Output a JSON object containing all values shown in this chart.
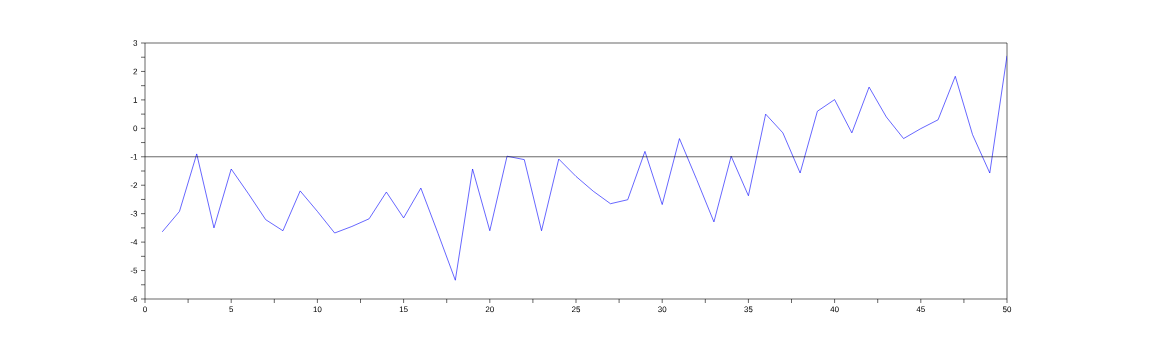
{
  "chart_data": {
    "type": "line",
    "x": [
      1,
      2,
      3,
      4,
      5,
      6,
      7,
      8,
      9,
      10,
      11,
      12,
      13,
      14,
      15,
      16,
      17,
      18,
      19,
      20,
      21,
      22,
      23,
      24,
      25,
      26,
      27,
      28,
      29,
      30,
      31,
      32,
      33,
      34,
      35,
      36,
      37,
      38,
      39,
      40,
      41,
      42,
      43,
      44,
      45,
      46,
      47,
      48,
      49,
      50
    ],
    "series": [
      {
        "color": "#0000ff",
        "values": [
          -3.64,
          -2.92,
          -0.9,
          -3.5,
          -1.43,
          -2.3,
          -3.21,
          -3.6,
          -2.2,
          -2.92,
          -3.68,
          -3.45,
          -3.18,
          -2.24,
          -3.15,
          -2.1,
          -3.7,
          -5.34,
          -1.43,
          -3.6,
          -0.98,
          -1.1,
          -3.6,
          -1.08,
          -1.69,
          -2.21,
          -2.65,
          -2.51,
          -0.81,
          -2.68,
          -0.36,
          -1.8,
          -3.29,
          -0.98,
          -2.37,
          0.5,
          -0.16,
          -1.57,
          0.6,
          1.01,
          -0.16,
          1.45,
          0.4,
          -0.36,
          -0.01,
          0.3,
          1.83,
          -0.22,
          -1.57,
          2.55
        ]
      }
    ],
    "xlim": [
      0,
      50
    ],
    "ylim": [
      -6,
      3
    ],
    "xticks": [
      0,
      {
        "value": 2.5,
        "label": null
      },
      5,
      {
        "value": 7.5,
        "label": null
      },
      10,
      {
        "value": 12.5,
        "label": null
      },
      15,
      {
        "value": 17.5,
        "label": null
      },
      20,
      {
        "value": 22.5,
        "label": null
      },
      25,
      {
        "value": 27.5,
        "label": null
      },
      30,
      {
        "value": 32.5,
        "label": null
      },
      35,
      {
        "value": 37.5,
        "label": null
      },
      40,
      {
        "value": 42.5,
        "label": null
      },
      45,
      {
        "value": 47.5,
        "label": null
      },
      50
    ],
    "yticks": [
      -6,
      {
        "value": -5.5,
        "label": null
      },
      -5,
      {
        "value": -4.5,
        "label": null
      },
      -4,
      {
        "value": -3.5,
        "label": null
      },
      -3,
      {
        "value": -2.5,
        "label": null
      },
      -2,
      {
        "value": -1.5,
        "label": null
      },
      -1,
      {
        "value": -0.5,
        "label": null
      },
      0,
      {
        "value": 0.5,
        "label": null
      },
      1,
      {
        "value": 1.5,
        "label": null
      },
      2,
      {
        "value": 2.5,
        "label": null
      },
      3
    ],
    "ref_lines": [
      {
        "axis": "y",
        "value": -1,
        "color": "#000000"
      }
    ],
    "grid": false,
    "marker": "none",
    "line_style": "solid"
  }
}
